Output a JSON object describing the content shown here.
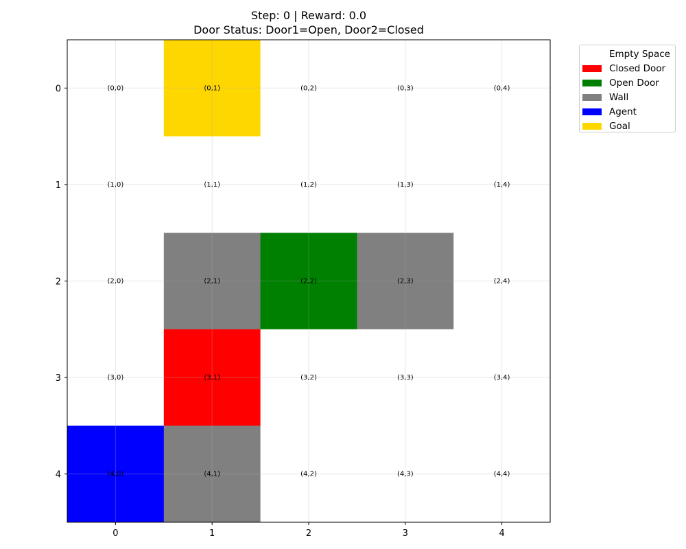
{
  "header": {
    "line1": "Step: 0 | Reward: 0.0",
    "line2": "Door Status: Door1=Open, Door2=Closed"
  },
  "legend": [
    {
      "label": "Empty Space",
      "color": "#ffffff",
      "key": "empty"
    },
    {
      "label": "Closed Door",
      "color": "#ff0000",
      "key": "closed_door"
    },
    {
      "label": "Open Door",
      "color": "#008000",
      "key": "open_door"
    },
    {
      "label": "Wall",
      "color": "#808080",
      "key": "wall"
    },
    {
      "label": "Agent",
      "color": "#0000ff",
      "key": "agent"
    },
    {
      "label": "Goal",
      "color": "#ffd700",
      "key": "goal"
    }
  ],
  "grid": {
    "rows": 5,
    "cols": 5,
    "x_ticks": [
      "0",
      "1",
      "2",
      "3",
      "4"
    ],
    "y_ticks": [
      "0",
      "1",
      "2",
      "3",
      "4"
    ],
    "cells": [
      [
        "empty",
        "goal",
        "empty",
        "empty",
        "empty"
      ],
      [
        "empty",
        "empty",
        "empty",
        "empty",
        "empty"
      ],
      [
        "empty",
        "wall",
        "open_door",
        "wall",
        "empty"
      ],
      [
        "empty",
        "closed_door",
        "empty",
        "empty",
        "empty"
      ],
      [
        "agent",
        "wall",
        "empty",
        "empty",
        "empty"
      ]
    ],
    "labels": [
      [
        "(0,0)",
        "(0,1)",
        "(0,2)",
        "(0,3)",
        "(0,4)"
      ],
      [
        "(1,0)",
        "(1,1)",
        "(1,2)",
        "(1,3)",
        "(1,4)"
      ],
      [
        "(2,0)",
        "(2,1)",
        "(2,2)",
        "(2,3)",
        "(2,4)"
      ],
      [
        "(3,0)",
        "(3,1)",
        "(3,2)",
        "(3,3)",
        "(3,4)"
      ],
      [
        "(4,0)",
        "(4,1)",
        "(4,2)",
        "(4,3)",
        "(4,4)"
      ]
    ]
  }
}
